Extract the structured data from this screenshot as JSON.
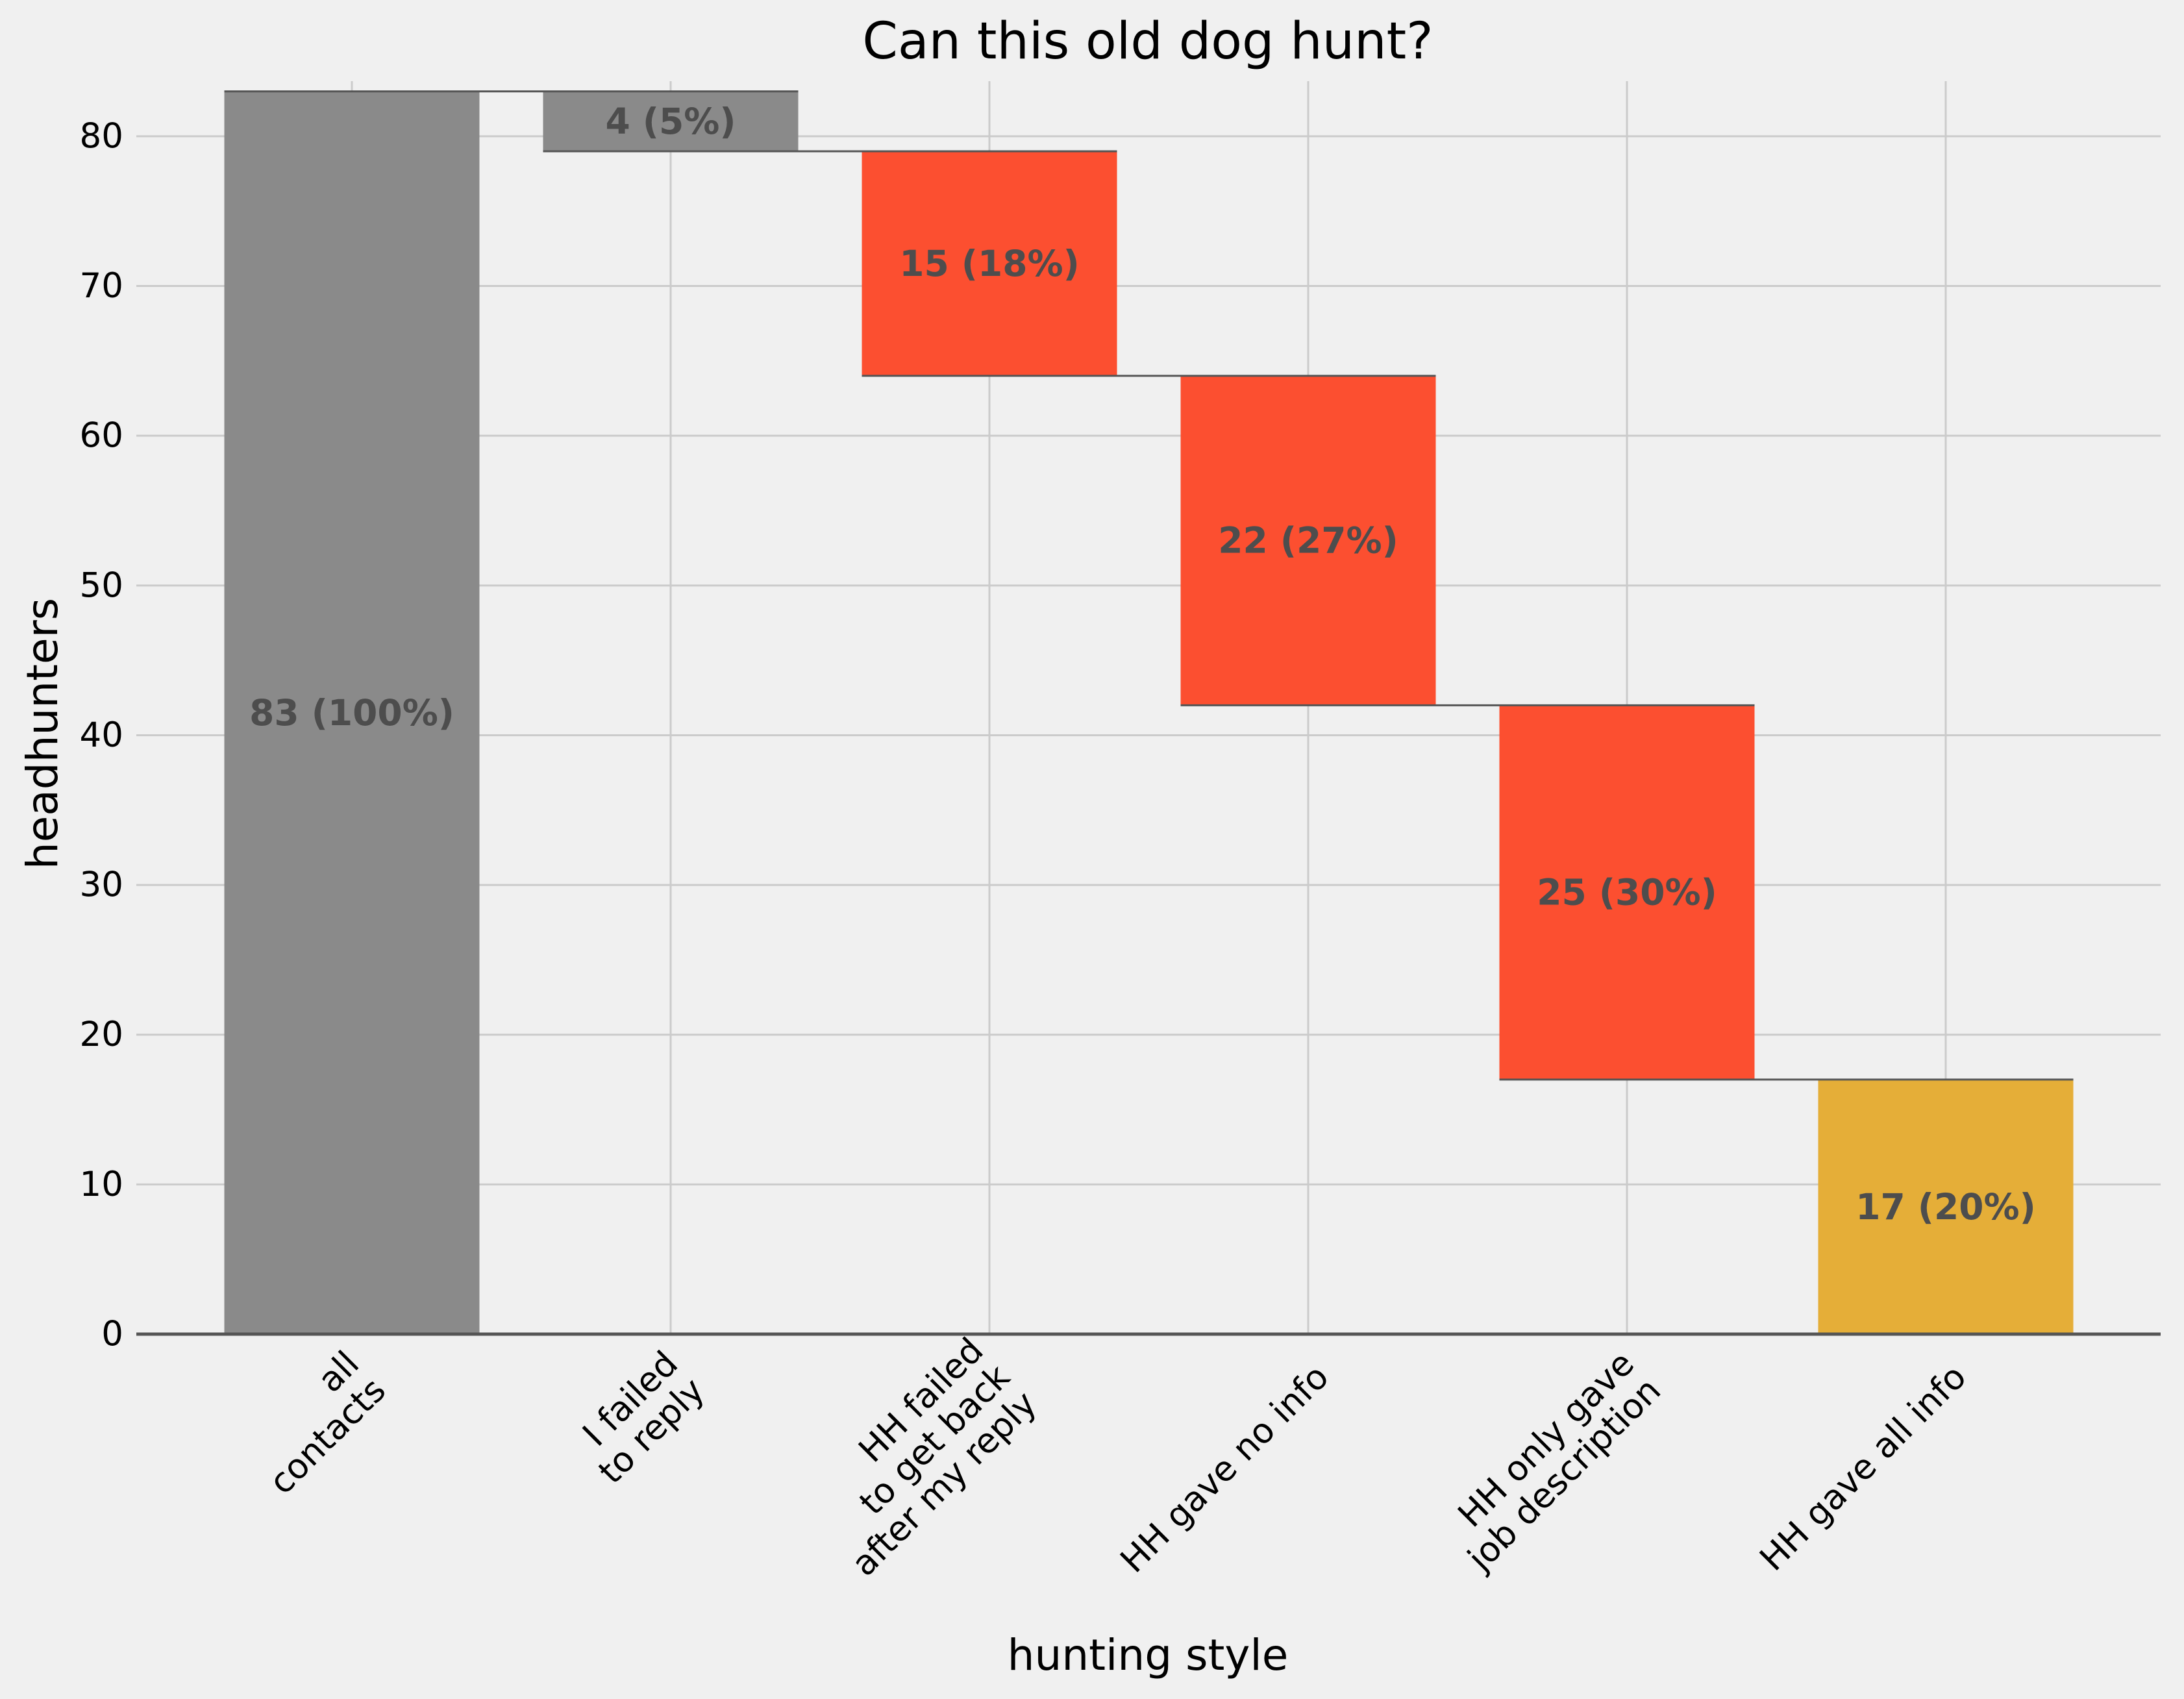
{
  "chart_data": {
    "type": "bar",
    "title": "Can this old dog hunt?",
    "xlabel": "hunting style",
    "ylabel": "headhunters",
    "ylim": [
      0,
      86.5
    ],
    "yticks": [
      0,
      10,
      20,
      30,
      40,
      50,
      60,
      70,
      80
    ],
    "grid": true,
    "categories": [
      [
        "all",
        "contacts"
      ],
      [
        "I failed",
        "to reply"
      ],
      [
        "HH failed",
        "to get back",
        "after my reply"
      ],
      [
        "HH gave no info"
      ],
      [
        "HH only gave",
        "job description"
      ],
      [
        "HH gave all info"
      ]
    ],
    "bars": [
      {
        "bottom": 0,
        "top": 83,
        "value": 83,
        "label": "83 (100%)",
        "color": "#8a8a8a"
      },
      {
        "bottom": 79,
        "top": 83,
        "value": 4,
        "label": "4 (5%)",
        "color": "#8a8a8a"
      },
      {
        "bottom": 64,
        "top": 79,
        "value": 15,
        "label": "15 (18%)",
        "color": "#fc4f30"
      },
      {
        "bottom": 42,
        "top": 64,
        "value": 22,
        "label": "22 (27%)",
        "color": "#fc4f30"
      },
      {
        "bottom": 17,
        "top": 42,
        "value": 25,
        "label": "25 (30%)",
        "color": "#fc4f30"
      },
      {
        "bottom": 0,
        "top": 17,
        "value": 17,
        "label": "17 (20%)",
        "color": "#e5ae38"
      }
    ],
    "connectors": [
      83,
      79,
      64,
      42,
      17
    ],
    "colors": {
      "background": "#f0f0f0",
      "grid": "#cbcbcb",
      "connector": "#555555",
      "label": "#4d4d4d"
    }
  }
}
